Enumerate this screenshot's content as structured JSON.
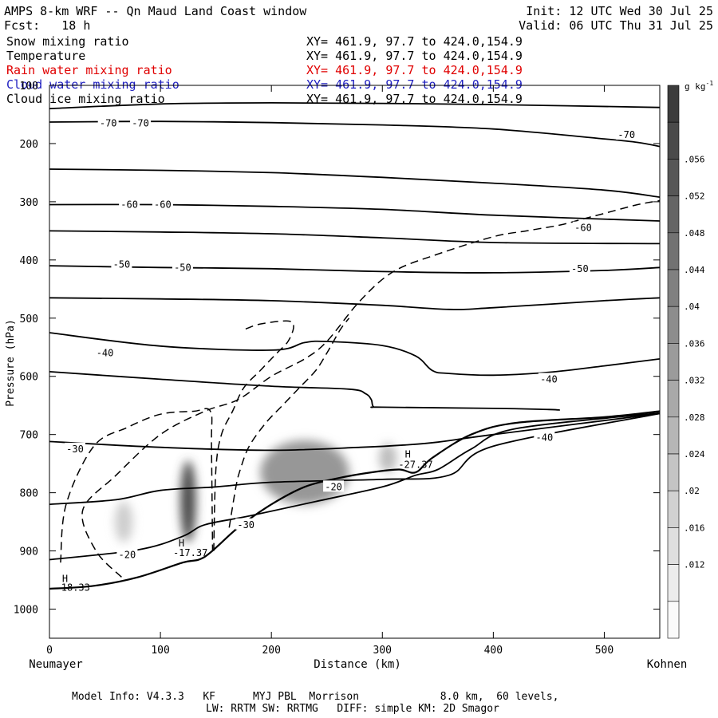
{
  "header": {
    "title": "AMPS 8-km WRF -- Qn Maud Land Coast window",
    "init": "Init: 12 UTC Wed 30 Jul 25",
    "fcst": "Fcst:   18 h",
    "valid": "Valid: 06 UTC Thu 31 Jul 25"
  },
  "legend": [
    {
      "name": "Snow mixing ratio",
      "xy": "XY= 461.9, 97.7 to 424.0,154.9",
      "color": "#000000"
    },
    {
      "name": "Temperature",
      "xy": "XY= 461.9, 97.7 to 424.0,154.9",
      "color": "#000000"
    },
    {
      "name": "Rain water mixing ratio",
      "xy": "XY= 461.9, 97.7 to 424.0,154.9",
      "color": "#e00000"
    },
    {
      "name": "Cloud water mixing ratio",
      "xy": "XY= 461.9, 97.7 to 424.0,154.9",
      "color": "#2020c0"
    },
    {
      "name": "Cloud ice mixing ratio",
      "xy": "XY= 461.9, 97.7 to 424.0,154.9",
      "color": "#000000"
    }
  ],
  "footer": {
    "line1": "Model Info: V4.3.3   KF      MYJ PBL  Morrison             8.0 km,  60 levels,",
    "line2": "LW: RRTM SW: RRTMG   DIFF: simple KM: 2D Smagor"
  },
  "chart_data": {
    "type": "contour-cross-section",
    "xlabel": "Distance (km)",
    "ylabel": "Pressure (hPa)",
    "xlim": [
      0,
      550
    ],
    "ylim": [
      1050,
      100
    ],
    "x_ticks": [
      0,
      100,
      200,
      300,
      400,
      500
    ],
    "y_ticks": [
      100,
      200,
      300,
      400,
      500,
      600,
      700,
      800,
      900,
      1000
    ],
    "x_endpoints": {
      "left": "Neumayer",
      "right": "Kohnen"
    },
    "colorbar": {
      "unit": "g kg",
      "unit_exp": "-1",
      "ticks": [
        ".012",
        ".016",
        ".02",
        ".024",
        ".028",
        ".032",
        ".036",
        ".04",
        ".044",
        ".048",
        ".052",
        ".056"
      ]
    },
    "temperature_labels": [
      {
        "text": "-70",
        "x": 53,
        "p": 165
      },
      {
        "text": "-70",
        "x": 82,
        "p": 165
      },
      {
        "text": "-70",
        "x": 520,
        "p": 185
      },
      {
        "text": "-60",
        "x": 72,
        "p": 305
      },
      {
        "text": "-60",
        "x": 102,
        "p": 305
      },
      {
        "text": "-60",
        "x": 481,
        "p": 345
      },
      {
        "text": "-50",
        "x": 65,
        "p": 408
      },
      {
        "text": "-50",
        "x": 120,
        "p": 413
      },
      {
        "text": "-50",
        "x": 478,
        "p": 415
      },
      {
        "text": "-40",
        "x": 50,
        "p": 560
      },
      {
        "text": "-40",
        "x": 450,
        "p": 605
      },
      {
        "text": "-40",
        "x": 446,
        "p": 705
      },
      {
        "text": "-30",
        "x": 23,
        "p": 725
      },
      {
        "text": "-30",
        "x": 177,
        "p": 855
      },
      {
        "text": "-20",
        "x": 256,
        "p": 790
      },
      {
        "text": "-20",
        "x": 70,
        "p": 907
      }
    ],
    "extrema": [
      {
        "type": "H",
        "value": "-18.33",
        "x": 14,
        "p": 948,
        "value_x": 21,
        "value_p": 963
      },
      {
        "type": "H",
        "value": "-17.37",
        "x": 119,
        "p": 887,
        "value_x": 127,
        "value_p": 903
      },
      {
        "type": "H",
        "value": "-27.37",
        "x": 323,
        "p": 734,
        "value_x": 330,
        "value_p": 752
      }
    ],
    "isotherms": [
      {
        "value": -70,
        "points": [
          [
            0,
            140
          ],
          [
            100,
            132
          ],
          [
            200,
            130
          ],
          [
            300,
            131
          ],
          [
            400,
            133
          ],
          [
            550,
            138
          ]
        ]
      },
      {
        "value": -70,
        "points": [
          [
            0,
            163
          ],
          [
            100,
            162
          ],
          [
            200,
            164
          ],
          [
            300,
            168
          ],
          [
            400,
            175
          ],
          [
            500,
            192
          ],
          [
            530,
            198
          ],
          [
            550,
            205
          ]
        ]
      },
      {
        "value": -60,
        "points": [
          [
            0,
            244
          ],
          [
            100,
            246
          ],
          [
            200,
            250
          ],
          [
            300,
            258
          ],
          [
            400,
            268
          ],
          [
            500,
            280
          ],
          [
            550,
            292
          ]
        ]
      },
      {
        "value": -60,
        "points": [
          [
            0,
            305
          ],
          [
            100,
            305
          ],
          [
            200,
            308
          ],
          [
            300,
            313
          ],
          [
            400,
            323
          ],
          [
            550,
            333
          ]
        ]
      },
      {
        "value": -50,
        "points": [
          [
            0,
            350
          ],
          [
            100,
            352
          ],
          [
            200,
            355
          ],
          [
            300,
            362
          ],
          [
            400,
            370
          ],
          [
            550,
            372
          ]
        ]
      },
      {
        "value": -50,
        "points": [
          [
            0,
            410
          ],
          [
            100,
            413
          ],
          [
            200,
            415
          ],
          [
            300,
            420
          ],
          [
            400,
            422
          ],
          [
            500,
            418
          ],
          [
            550,
            413
          ]
        ]
      },
      {
        "value": -40,
        "points": [
          [
            0,
            465
          ],
          [
            100,
            467
          ],
          [
            200,
            470
          ],
          [
            300,
            478
          ],
          [
            360,
            485
          ],
          [
            400,
            482
          ],
          [
            500,
            470
          ],
          [
            550,
            465
          ]
        ]
      },
      {
        "value": -40,
        "points": [
          [
            0,
            525
          ],
          [
            100,
            548
          ],
          [
            200,
            555
          ],
          [
            230,
            542
          ],
          [
            250,
            540
          ],
          [
            300,
            547
          ],
          [
            330,
            565
          ],
          [
            345,
            590
          ],
          [
            360,
            595
          ],
          [
            400,
            598
          ],
          [
            450,
            593
          ],
          [
            500,
            582
          ],
          [
            550,
            570
          ]
        ]
      },
      {
        "value": -40,
        "points": [
          [
            0,
            592
          ],
          [
            100,
            605
          ],
          [
            200,
            617
          ],
          [
            270,
            622
          ],
          [
            285,
            630
          ],
          [
            290,
            640
          ],
          [
            292,
            652
          ],
          [
            300,
            653
          ],
          [
            400,
            655
          ],
          [
            450,
            657
          ],
          [
            460,
            658
          ]
        ]
      },
      {
        "value": -30,
        "points": [
          [
            0,
            712
          ],
          [
            100,
            722
          ],
          [
            200,
            727
          ],
          [
            280,
            722
          ],
          [
            320,
            718
          ],
          [
            350,
            713
          ],
          [
            400,
            700
          ],
          [
            550,
            664
          ]
        ]
      },
      {
        "value": -20,
        "points": [
          [
            0,
            820
          ],
          [
            60,
            812
          ],
          [
            100,
            796
          ],
          [
            150,
            790
          ],
          [
            200,
            782
          ],
          [
            300,
            777
          ],
          [
            360,
            770
          ],
          [
            400,
            720
          ],
          [
            550,
            664
          ]
        ]
      },
      {
        "value": -20,
        "points": [
          [
            0,
            915
          ],
          [
            80,
            898
          ],
          [
            120,
            875
          ],
          [
            140,
            855
          ],
          [
            180,
            840
          ],
          [
            240,
            815
          ],
          [
            300,
            790
          ],
          [
            330,
            770
          ],
          [
            350,
            760
          ],
          [
            380,
            725
          ],
          [
            420,
            690
          ],
          [
            550,
            663
          ]
        ]
      }
    ],
    "cloud_ice_dashed": [
      {
        "points": [
          [
            10,
            920
          ],
          [
            15,
            820
          ],
          [
            40,
            720
          ],
          [
            70,
            688
          ],
          [
            100,
            665
          ],
          [
            130,
            660
          ],
          [
            145,
            660
          ],
          [
            146,
            720
          ],
          [
            147,
            900
          ]
        ]
      },
      {
        "points": [
          [
            65,
            945
          ],
          [
            42,
            900
          ],
          [
            30,
            830
          ],
          [
            60,
            770
          ],
          [
            100,
            700
          ],
          [
            140,
            660
          ],
          [
            170,
            640
          ],
          [
            200,
            600
          ],
          [
            230,
            570
          ],
          [
            250,
            540
          ],
          [
            280,
            470
          ],
          [
            310,
            420
          ],
          [
            350,
            390
          ],
          [
            400,
            360
          ],
          [
            430,
            350
          ],
          [
            460,
            340
          ],
          [
            480,
            330
          ],
          [
            500,
            320
          ],
          [
            530,
            305
          ],
          [
            550,
            298
          ]
        ]
      },
      {
        "points": [
          [
            162,
            860
          ],
          [
            168,
            790
          ],
          [
            172,
            760
          ],
          [
            180,
            720
          ],
          [
            195,
            680
          ],
          [
            210,
            650
          ],
          [
            225,
            620
          ],
          [
            240,
            590
          ],
          [
            250,
            560
          ],
          [
            262,
            520
          ],
          [
            270,
            500
          ]
        ]
      },
      {
        "points": [
          [
            148,
            900
          ],
          [
            150,
            760
          ],
          [
            155,
            700
          ],
          [
            165,
            660
          ],
          [
            175,
            620
          ],
          [
            190,
            590
          ],
          [
            205,
            560
          ],
          [
            215,
            540
          ],
          [
            220,
            515
          ],
          [
            215,
            505
          ],
          [
            190,
            510
          ],
          [
            175,
            520
          ]
        ]
      }
    ],
    "snow_shading": [
      {
        "x": 125,
        "p": 815,
        "rx": 7,
        "rp": 70,
        "value": 0.05
      },
      {
        "x": 67,
        "p": 850,
        "rx": 8,
        "rp": 35,
        "value": 0.016
      },
      {
        "x": 230,
        "p": 765,
        "rx": 40,
        "rp": 55,
        "value": 0.03
      },
      {
        "x": 305,
        "p": 740,
        "rx": 8,
        "rp": 25,
        "value": 0.02
      }
    ],
    "terrain": {
      "points": [
        [
          0,
          965
        ],
        [
          40,
          960
        ],
        [
          80,
          945
        ],
        [
          120,
          920
        ],
        [
          140,
          910
        ],
        [
          170,
          860
        ],
        [
          200,
          820
        ],
        [
          230,
          790
        ],
        [
          260,
          775
        ],
        [
          290,
          765
        ],
        [
          315,
          760
        ],
        [
          330,
          765
        ],
        [
          345,
          740
        ],
        [
          380,
          700
        ],
        [
          420,
          680
        ],
        [
          500,
          670
        ],
        [
          550,
          660
        ]
      ]
    }
  }
}
